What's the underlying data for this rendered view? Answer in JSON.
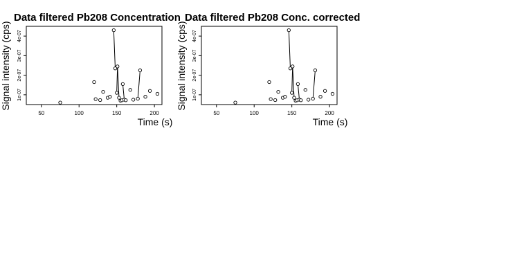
{
  "chart_data": [
    {
      "type": "scatter",
      "title": "Data filtered Pb208 Concentration",
      "xlabel": "Time (s)",
      "ylabel": "Signal intensity (cps)",
      "xlim": [
        30,
        210
      ],
      "ylim": [
        5e-08,
        4.5e-07
      ],
      "x_ticks": [
        50,
        100,
        150,
        200
      ],
      "x_tick_labels": [
        "50",
        "100",
        "150",
        "200"
      ],
      "y_ticks": [
        1e-07,
        2e-07,
        3e-07,
        4e-07
      ],
      "y_tick_labels": [
        "1e-07",
        "2e-07",
        "3e-07",
        "4e-07"
      ],
      "grid": false,
      "marker": "open-circle",
      "points": [
        {
          "x": 75,
          "y": 6e-08
        },
        {
          "x": 120,
          "y": 1.65e-07
        },
        {
          "x": 122,
          "y": 7.8e-08
        },
        {
          "x": 128,
          "y": 7.3e-08
        },
        {
          "x": 132,
          "y": 1.15e-07
        },
        {
          "x": 138,
          "y": 8.5e-08
        },
        {
          "x": 141,
          "y": 9e-08
        },
        {
          "x": 146,
          "y": 4.3e-07
        },
        {
          "x": 148,
          "y": 2.35e-07
        },
        {
          "x": 150,
          "y": 1.1e-07
        },
        {
          "x": 151,
          "y": 2.45e-07
        },
        {
          "x": 153,
          "y": 8.5e-08
        },
        {
          "x": 155,
          "y": 7e-08
        },
        {
          "x": 157,
          "y": 7.2e-08
        },
        {
          "x": 158,
          "y": 1.55e-07
        },
        {
          "x": 160,
          "y": 7.5e-08
        },
        {
          "x": 162,
          "y": 7.2e-08
        },
        {
          "x": 168,
          "y": 1.25e-07
        },
        {
          "x": 172,
          "y": 7.5e-08
        },
        {
          "x": 178,
          "y": 8e-08
        },
        {
          "x": 181,
          "y": 2.25e-07
        },
        {
          "x": 188,
          "y": 9e-08
        },
        {
          "x": 194,
          "y": 1.2e-07
        },
        {
          "x": 204,
          "y": 1.05e-07
        }
      ],
      "segments": [
        [
          7,
          8
        ],
        [
          9,
          10
        ],
        [
          10,
          11
        ],
        [
          14,
          15
        ],
        [
          19,
          20
        ]
      ]
    },
    {
      "type": "scatter",
      "title": "Data filtered Pb208 Conc. corrected",
      "xlabel": "Time (s)",
      "ylabel": "Signal intensity (cps)",
      "xlim": [
        30,
        210
      ],
      "ylim": [
        5e-08,
        4.5e-07
      ],
      "x_ticks": [
        50,
        100,
        150,
        200
      ],
      "x_tick_labels": [
        "50",
        "100",
        "150",
        "200"
      ],
      "y_ticks": [
        1e-07,
        2e-07,
        3e-07,
        4e-07
      ],
      "y_tick_labels": [
        "1e-07",
        "2e-07",
        "3e-07",
        "4e-07"
      ],
      "grid": false,
      "marker": "open-circle",
      "points": [
        {
          "x": 75,
          "y": 6e-08
        },
        {
          "x": 120,
          "y": 1.65e-07
        },
        {
          "x": 122,
          "y": 7.8e-08
        },
        {
          "x": 128,
          "y": 7.3e-08
        },
        {
          "x": 132,
          "y": 1.15e-07
        },
        {
          "x": 138,
          "y": 8.5e-08
        },
        {
          "x": 141,
          "y": 9e-08
        },
        {
          "x": 146,
          "y": 4.3e-07
        },
        {
          "x": 148,
          "y": 2.35e-07
        },
        {
          "x": 150,
          "y": 1.1e-07
        },
        {
          "x": 151,
          "y": 2.45e-07
        },
        {
          "x": 153,
          "y": 8.5e-08
        },
        {
          "x": 155,
          "y": 7e-08
        },
        {
          "x": 157,
          "y": 7.2e-08
        },
        {
          "x": 158,
          "y": 1.55e-07
        },
        {
          "x": 160,
          "y": 7.5e-08
        },
        {
          "x": 162,
          "y": 7.2e-08
        },
        {
          "x": 168,
          "y": 1.25e-07
        },
        {
          "x": 172,
          "y": 7.5e-08
        },
        {
          "x": 178,
          "y": 8e-08
        },
        {
          "x": 181,
          "y": 2.25e-07
        },
        {
          "x": 188,
          "y": 9e-08
        },
        {
          "x": 194,
          "y": 1.2e-07
        },
        {
          "x": 204,
          "y": 1.05e-07
        }
      ],
      "segments": [
        [
          7,
          8
        ],
        [
          9,
          10
        ],
        [
          10,
          11
        ],
        [
          14,
          15
        ],
        [
          19,
          20
        ]
      ]
    }
  ]
}
